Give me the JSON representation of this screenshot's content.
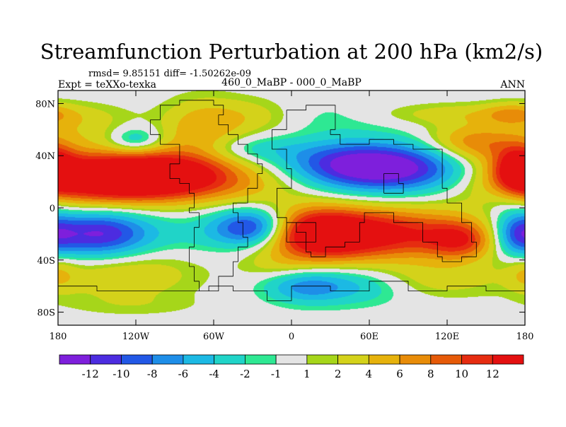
{
  "chart_data": {
    "type": "heatmap",
    "title": "Streamfunction Perturbation at 200 hPa (km2/s)",
    "stats_text": "rmsd= 9.85151 diff= -1.50262e-09",
    "left_label": "Expt = teXXo-texka",
    "center_label": "460_0_MaBP - 000_0_MaBP",
    "right_label": "ANN",
    "xlim": [
      -180,
      180
    ],
    "ylim": [
      -90,
      90
    ],
    "x_ticks": [
      {
        "value": -180,
        "label": "180"
      },
      {
        "value": -120,
        "label": "120W"
      },
      {
        "value": -60,
        "label": "60W"
      },
      {
        "value": 0,
        "label": "0"
      },
      {
        "value": 60,
        "label": "60E"
      },
      {
        "value": 120,
        "label": "120E"
      },
      {
        "value": 180,
        "label": "180"
      }
    ],
    "y_ticks": [
      {
        "value": 80,
        "label": "80N"
      },
      {
        "value": 40,
        "label": "40N"
      },
      {
        "value": 0,
        "label": "0"
      },
      {
        "value": -40,
        "label": "40S"
      },
      {
        "value": -80,
        "label": "80S"
      }
    ],
    "colorbar": {
      "levels": [
        "-12",
        "-10",
        "-8",
        "-6",
        "-4",
        "-2",
        "-1",
        "1",
        "2",
        "4",
        "6",
        "8",
        "10",
        "12"
      ],
      "colors": [
        "#7e1fdc",
        "#4c2ce0",
        "#2258e6",
        "#1e8ee8",
        "#1cb9e4",
        "#20d4c8",
        "#2ee893",
        "#e4e4e4",
        "#a6d61a",
        "#d4d21a",
        "#e6b20c",
        "#e88c08",
        "#e65a08",
        "#e62c10",
        "#e41010"
      ]
    },
    "features": [
      {
        "lon": -160,
        "lat": 25,
        "value": 12,
        "sx": 48,
        "sy": 16
      },
      {
        "lon": -120,
        "lat": 22,
        "value": 10,
        "sx": 40,
        "sy": 12
      },
      {
        "lon": -90,
        "lat": 28,
        "value": 6,
        "sx": 30,
        "sy": 12
      },
      {
        "lon": -45,
        "lat": 20,
        "value": 5,
        "sx": 40,
        "sy": 12
      },
      {
        "lon": -70,
        "lat": 60,
        "value": 5,
        "sx": 22,
        "sy": 16
      },
      {
        "lon": -30,
        "lat": 70,
        "value": 4,
        "sx": 28,
        "sy": 10
      },
      {
        "lon": -160,
        "lat": 60,
        "value": 3,
        "sx": 25,
        "sy": 12
      },
      {
        "lon": -120,
        "lat": 52,
        "value": -5,
        "sx": 14,
        "sy": 7
      },
      {
        "lon": -150,
        "lat": 48,
        "value": -2,
        "sx": 28,
        "sy": 10
      },
      {
        "lon": -30,
        "lat": 45,
        "value": -3,
        "sx": 28,
        "sy": 7
      },
      {
        "lon": 80,
        "lat": 30,
        "value": -13,
        "sx": 45,
        "sy": 13
      },
      {
        "lon": 40,
        "lat": 35,
        "value": -6,
        "sx": 35,
        "sy": 12
      },
      {
        "lon": 10,
        "lat": 70,
        "value": -2,
        "sx": 45,
        "sy": 10
      },
      {
        "lon": 140,
        "lat": 50,
        "value": 7,
        "sx": 25,
        "sy": 10
      },
      {
        "lon": 175,
        "lat": 30,
        "value": 10,
        "sx": 12,
        "sy": 12
      },
      {
        "lon": 130,
        "lat": 72,
        "value": 3,
        "sx": 50,
        "sy": 6
      },
      {
        "lon": 170,
        "lat": 72,
        "value": 4,
        "sx": 15,
        "sy": 6
      },
      {
        "lon": 165,
        "lat": 5,
        "value": -2,
        "sx": 15,
        "sy": 10
      },
      {
        "lon": 60,
        "lat": -20,
        "value": 14,
        "sx": 55,
        "sy": 14
      },
      {
        "lon": 20,
        "lat": -20,
        "value": 9,
        "sx": 25,
        "sy": 14
      },
      {
        "lon": 130,
        "lat": -25,
        "value": 8,
        "sx": 18,
        "sy": 10
      },
      {
        "lon": 175,
        "lat": -20,
        "value": -7,
        "sx": 12,
        "sy": 12
      },
      {
        "lon": 180,
        "lat": -50,
        "value": 3,
        "sx": 10,
        "sy": 10
      },
      {
        "lon": -150,
        "lat": -20,
        "value": -13,
        "sx": 30,
        "sy": 13
      },
      {
        "lon": -30,
        "lat": -15,
        "value": -12,
        "sx": 20,
        "sy": 10
      },
      {
        "lon": -60,
        "lat": -20,
        "value": -3,
        "sx": 28,
        "sy": 12
      },
      {
        "lon": -130,
        "lat": -50,
        "value": 4,
        "sx": 40,
        "sy": 14
      },
      {
        "lon": -10,
        "lat": -45,
        "value": 2,
        "sx": 20,
        "sy": 8
      },
      {
        "lon": 10,
        "lat": -60,
        "value": -6,
        "sx": 22,
        "sy": 9
      },
      {
        "lon": 50,
        "lat": -60,
        "value": -4,
        "sx": 30,
        "sy": 10
      },
      {
        "lon": 110,
        "lat": -55,
        "value": 3,
        "sx": 35,
        "sy": 10
      },
      {
        "lon": -120,
        "lat": -75,
        "value": 1.2,
        "sx": 40,
        "sy": 6
      }
    ]
  }
}
